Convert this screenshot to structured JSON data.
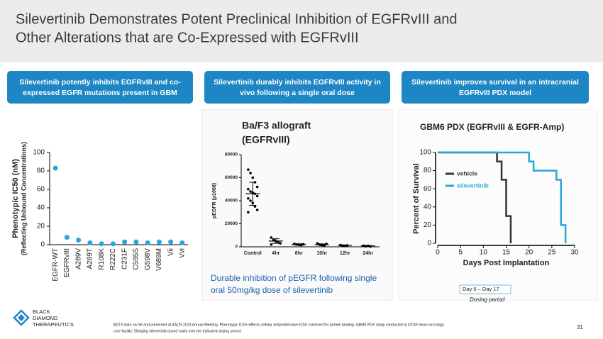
{
  "header": {
    "title_lines": [
      "Silevertinib Demonstrates Potent Preclinical Inhibition of EGFRvIII and",
      "Other Alterations that are Co-Expressed with EGFRvIII"
    ]
  },
  "boxes": [
    [
      "Silevertinib potently inhibits EGFRvIII and co-",
      "expressed EGFR mutations present in GBM"
    ],
    [
      "Silevertinib durably inhibits EGFRvIII activity in",
      "vivo following a single oral dose"
    ],
    [
      "Silevertinib improves survival in an intracranial",
      "EGFRvIII PDX model"
    ]
  ],
  "chart_data": [
    {
      "type": "dot",
      "ylabel_lines": [
        "Phenotypic IC50 (nM)",
        "(Reflecting Unbound Concentrations)"
      ],
      "categories": [
        "EGFR-WT",
        "EGFRvIII",
        "A289V",
        "A289T",
        "R108K",
        "R222C",
        "C231F",
        "C595S",
        "G598V",
        "V689M",
        "Vii",
        "Vvi"
      ],
      "values": [
        83,
        8,
        5,
        2,
        1,
        1,
        3,
        3,
        2,
        3,
        3,
        2
      ],
      "color": "#29a8d8",
      "ylim": [
        0,
        100
      ],
      "yticks": [
        0,
        20,
        40,
        60,
        80,
        100
      ]
    },
    {
      "type": "scatterbar",
      "title_lines": [
        "Ba/F3 allograft",
        "(EGFRvIII)"
      ],
      "ylabel": "pEGFR (p1068)",
      "categories": [
        "Control",
        "4hr",
        "8hr",
        "10hr",
        "12hr",
        "24hr"
      ],
      "means": [
        46000,
        5000,
        2000,
        1800,
        1200,
        800
      ],
      "errors": [
        10000,
        2000,
        600,
        700,
        400,
        300
      ],
      "points": [
        [
          67000,
          64000,
          60000,
          56000,
          52000,
          50000,
          48000,
          47000,
          46000,
          44000,
          42000,
          40000,
          38000,
          35000,
          32000,
          30000
        ],
        [
          8000,
          6000,
          5000,
          4000,
          3000,
          2000
        ],
        [
          2500,
          2000,
          1800,
          1500,
          2200
        ],
        [
          3000,
          2000,
          1500,
          1000,
          2500
        ],
        [
          1500,
          1000,
          800,
          1200
        ],
        [
          1000,
          500,
          800,
          300
        ]
      ],
      "color": "#000000",
      "ylim": [
        0,
        80000
      ],
      "yticks": [
        0,
        20000,
        40000,
        60000,
        80000
      ],
      "caption_lines": [
        "Durable inhibition of pEGFR following single",
        "oral 50mg/kg dose of silevertinib"
      ]
    },
    {
      "type": "step",
      "title": "GBM6 PDX (EGFRvIII & EGFR-Amp)",
      "xlabel": "Days Post Implantation",
      "ylabel": "Percent of Survival",
      "series": [
        {
          "name": "vehicle",
          "color": "#333333",
          "x": [
            0,
            13,
            14,
            15,
            16
          ],
          "values": [
            100,
            90,
            70,
            30,
            0
          ]
        },
        {
          "name": "silevertinib",
          "color": "#29a8d8",
          "x": [
            0,
            20,
            21,
            26,
            27,
            28
          ],
          "values": [
            100,
            90,
            80,
            70,
            20,
            0
          ]
        }
      ],
      "xlim": [
        0,
        30
      ],
      "xticks": [
        0,
        5,
        10,
        15,
        20,
        25,
        30
      ],
      "ylim": [
        0,
        100
      ],
      "yticks": [
        0,
        20,
        40,
        60,
        80,
        100
      ],
      "annotations": [
        "Day 6 – Day 17",
        "Dosing period"
      ]
    }
  ],
  "footer": {
    "logo_lines": [
      "BLACK",
      "DIAMOND",
      "THERAPEUTICS"
    ],
    "footnote_lines": [
      "BDTX data on file and presented at AACR 2023 Annual Meeting. Phenotypic IC50 reflects cellular antiproliferative IC50 corrected for protein binding. GBM6 PDX study conducted at UCSF neuro oncology",
      "core facility; 50mg/kg silevertinib dosed orally over the indicated dosing period."
    ],
    "page": "31"
  }
}
